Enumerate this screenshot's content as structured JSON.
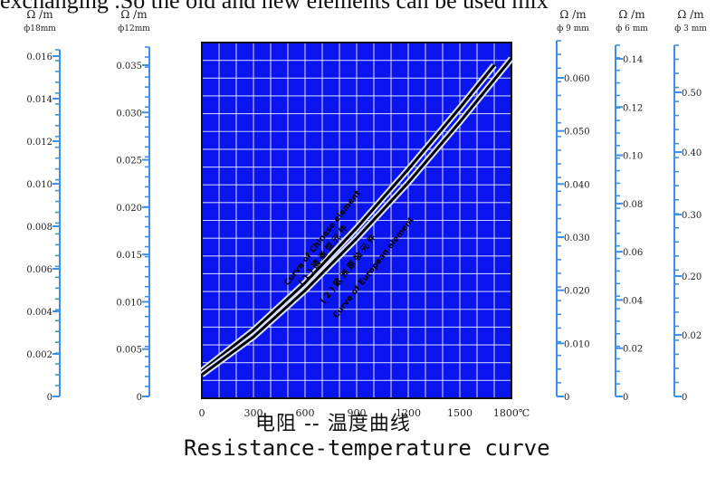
{
  "top_text": "exchanging .So the old and new elements can be used mix",
  "title_cn": "电阻 -- 温度曲线",
  "title_en": "Resistance-temperature curve",
  "colors": {
    "plot_bg": "#0a14ee",
    "grid": "#e8ecff",
    "axis": "#3d8fe8",
    "curve": "#000000"
  },
  "curve_labels": {
    "upper": "Curve of Chinese element",
    "upper_cn": "( 1 ) 國 產 型 元 件",
    "lower": "( 2 ) 歐 洲 原 裝 元 件",
    "lower_en": "Curve of European element"
  },
  "chart_data": {
    "type": "line",
    "xlabel": "",
    "x_unit": "1800℃",
    "x_ticks": [
      "0",
      "300",
      "600",
      "900",
      "1200",
      "1500",
      "1800℃"
    ],
    "xlim": [
      0,
      1800
    ],
    "series": [
      {
        "x": [
          0,
          300,
          600,
          900,
          1200,
          1500,
          1700
        ],
        "y": [
          0.0027,
          0.007,
          0.012,
          0.0178,
          0.024,
          0.0305,
          0.035
        ]
      },
      {
        "x": [
          0,
          300,
          600,
          900,
          1200,
          1500,
          1800
        ],
        "y": [
          0.0023,
          0.0063,
          0.0112,
          0.0167,
          0.0226,
          0.029,
          0.0357
        ]
      }
    ],
    "reference_axis": "ф12mm",
    "left_axes": [
      {
        "unit": "Ω /m",
        "dia": "ф18mm",
        "ticks": [
          "0",
          "0.002",
          "0.004",
          "0.006",
          "0.008",
          "0.010",
          "0.012",
          "0.014",
          "0.016"
        ]
      },
      {
        "unit": "Ω /m",
        "dia": "ф12mm",
        "ticks": [
          "0",
          "0.005",
          "0.010",
          "0.015",
          "0.020",
          "0.025",
          "0.030",
          "0.035"
        ]
      }
    ],
    "right_axes": [
      {
        "unit": "Ω /m",
        "dia": "ф 9 mm",
        "ticks": [
          "0",
          "0.010",
          "0.020",
          "0.030",
          "0.040",
          "0.050",
          "0.060"
        ]
      },
      {
        "unit": "Ω /m",
        "dia": "ф 6 mm",
        "ticks": [
          "0",
          "0.02",
          "0.04",
          "0.06",
          "0.08",
          "0.10",
          "0.12",
          "0.14"
        ]
      },
      {
        "unit": "Ω /m",
        "dia": "ф 3 mm",
        "ticks": [
          "0",
          "0.02",
          "0.20",
          "0.30",
          "0.40",
          "0.50"
        ]
      }
    ]
  }
}
